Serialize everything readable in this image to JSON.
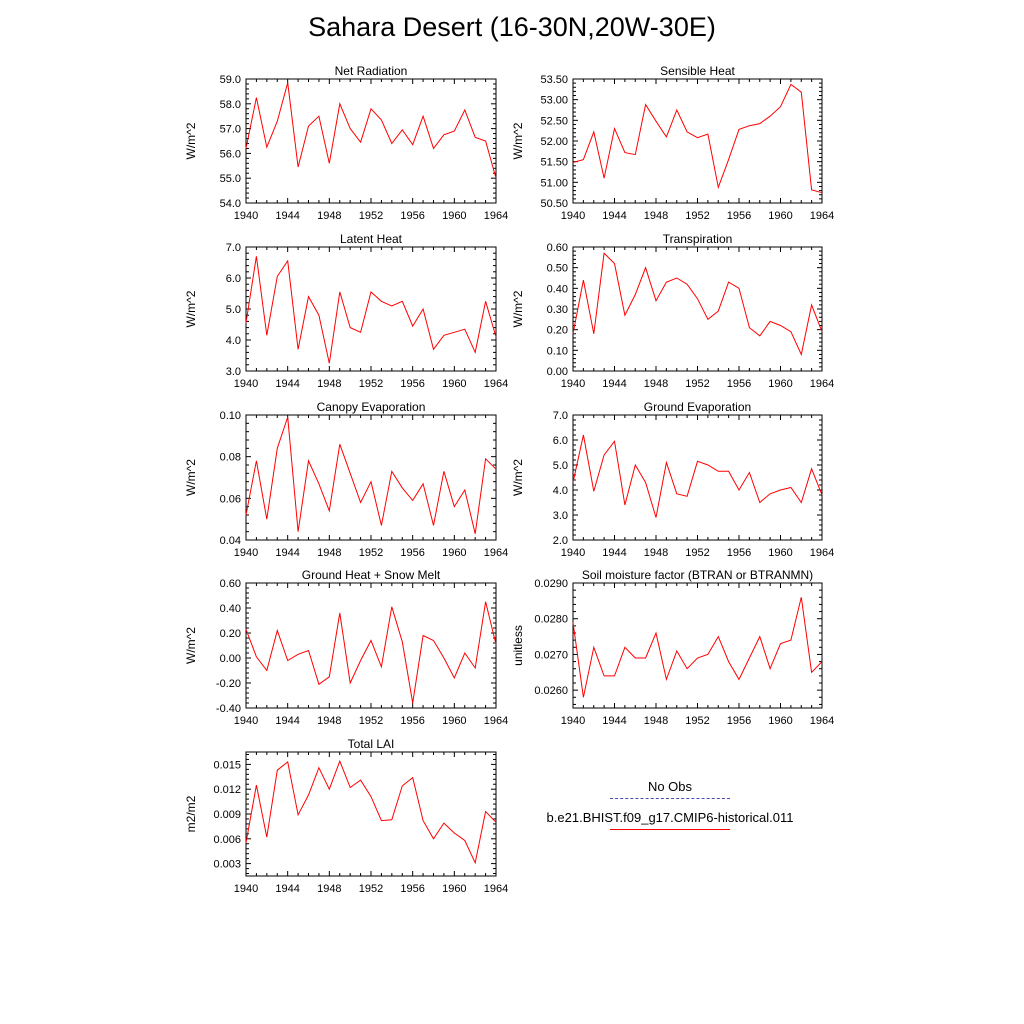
{
  "title": "Sahara Desert (16-30N,20W-30E)",
  "legend": {
    "obs_label": "No Obs",
    "obs_color": "#4b4bb0",
    "model_label": "b.e21.BHIST.f09_g17.CMIP6-historical.011",
    "model_color": "#ff0000"
  },
  "chart_data": [
    {
      "type": "line",
      "title": "Net Radiation",
      "xlabel": "",
      "ylabel": "W/m^2",
      "xlim": [
        1940,
        1964
      ],
      "ylim": [
        54.0,
        59.0
      ],
      "xticks": [
        "1940",
        "1944",
        "1948",
        "1952",
        "1956",
        "1960",
        "1964"
      ],
      "yticks": [
        "54.0",
        "55.0",
        "56.0",
        "57.0",
        "58.0",
        "59.0"
      ],
      "series": [
        {
          "color": "#ff0000",
          "x": [
            1940,
            1941,
            1942,
            1943,
            1944,
            1945,
            1946,
            1947,
            1948,
            1949,
            1950,
            1951,
            1952,
            1953,
            1954,
            1955,
            1956,
            1957,
            1958,
            1959,
            1960,
            1961,
            1962,
            1963,
            1964
          ],
          "y": [
            56.2,
            58.25,
            56.25,
            57.3,
            58.85,
            55.45,
            57.1,
            57.5,
            55.6,
            58.0,
            57.0,
            56.45,
            57.8,
            57.35,
            56.4,
            56.95,
            56.35,
            57.5,
            56.2,
            56.75,
            56.9,
            57.75,
            56.65,
            56.5,
            55.0
          ]
        }
      ]
    },
    {
      "type": "line",
      "title": "Sensible Heat",
      "xlabel": "",
      "ylabel": "W/m^2",
      "xlim": [
        1940,
        1964
      ],
      "ylim": [
        50.5,
        53.5
      ],
      "xticks": [
        "1940",
        "1944",
        "1948",
        "1952",
        "1956",
        "1960",
        "1964"
      ],
      "yticks": [
        "50.50",
        "51.00",
        "51.50",
        "52.00",
        "52.50",
        "53.00",
        "53.50"
      ],
      "series": [
        {
          "color": "#ff0000",
          "x": [
            1940,
            1941,
            1942,
            1943,
            1944,
            1945,
            1946,
            1947,
            1948,
            1949,
            1950,
            1951,
            1952,
            1953,
            1954,
            1955,
            1956,
            1957,
            1958,
            1959,
            1960,
            1961,
            1962,
            1963,
            1964
          ],
          "y": [
            51.48,
            51.55,
            52.22,
            51.1,
            52.3,
            51.72,
            51.67,
            52.88,
            52.48,
            52.1,
            52.75,
            52.22,
            52.08,
            52.17,
            50.88,
            51.55,
            52.28,
            52.37,
            52.42,
            52.6,
            52.83,
            53.37,
            53.18,
            50.82,
            50.75
          ]
        }
      ]
    },
    {
      "type": "line",
      "title": "Latent Heat",
      "xlabel": "",
      "ylabel": "W/m^2",
      "xlim": [
        1940,
        1964
      ],
      "ylim": [
        3.0,
        7.0
      ],
      "xticks": [
        "1940",
        "1944",
        "1948",
        "1952",
        "1956",
        "1960",
        "1964"
      ],
      "yticks": [
        "3.0",
        "4.0",
        "5.0",
        "6.0",
        "7.0"
      ],
      "series": [
        {
          "color": "#ff0000",
          "x": [
            1940,
            1941,
            1942,
            1943,
            1944,
            1945,
            1946,
            1947,
            1948,
            1949,
            1950,
            1951,
            1952,
            1953,
            1954,
            1955,
            1956,
            1957,
            1958,
            1959,
            1960,
            1961,
            1962,
            1963,
            1964
          ],
          "y": [
            4.55,
            6.7,
            4.15,
            6.05,
            6.55,
            3.7,
            5.4,
            4.8,
            3.25,
            5.55,
            4.4,
            4.25,
            5.55,
            5.25,
            5.1,
            5.25,
            4.45,
            5.0,
            3.7,
            4.15,
            4.25,
            4.35,
            3.6,
            5.25,
            4.1
          ]
        }
      ]
    },
    {
      "type": "line",
      "title": "Transpiration",
      "xlabel": "",
      "ylabel": "W/m^2",
      "xlim": [
        1940,
        1964
      ],
      "ylim": [
        0.0,
        0.6
      ],
      "xticks": [
        "1940",
        "1944",
        "1948",
        "1952",
        "1956",
        "1960",
        "1964"
      ],
      "yticks": [
        "0.00",
        "0.10",
        "0.20",
        "0.30",
        "0.40",
        "0.50",
        "0.60"
      ],
      "series": [
        {
          "color": "#ff0000",
          "x": [
            1940,
            1941,
            1942,
            1943,
            1944,
            1945,
            1946,
            1947,
            1948,
            1949,
            1950,
            1951,
            1952,
            1953,
            1954,
            1955,
            1956,
            1957,
            1958,
            1959,
            1960,
            1961,
            1962,
            1963,
            1964
          ],
          "y": [
            0.18,
            0.44,
            0.18,
            0.57,
            0.52,
            0.27,
            0.37,
            0.5,
            0.34,
            0.43,
            0.45,
            0.42,
            0.35,
            0.25,
            0.29,
            0.43,
            0.4,
            0.21,
            0.17,
            0.24,
            0.22,
            0.19,
            0.08,
            0.32,
            0.19
          ]
        }
      ]
    },
    {
      "type": "line",
      "title": "Canopy Evaporation",
      "xlabel": "",
      "ylabel": "W/m^2",
      "xlim": [
        1940,
        1964
      ],
      "ylim": [
        0.04,
        0.1
      ],
      "xticks": [
        "1940",
        "1944",
        "1948",
        "1952",
        "1956",
        "1960",
        "1964"
      ],
      "yticks": [
        "0.04",
        "0.06",
        "0.08",
        "0.10"
      ],
      "series": [
        {
          "color": "#ff0000",
          "x": [
            1940,
            1941,
            1942,
            1943,
            1944,
            1945,
            1946,
            1947,
            1948,
            1949,
            1950,
            1951,
            1952,
            1953,
            1954,
            1955,
            1956,
            1957,
            1958,
            1959,
            1960,
            1961,
            1962,
            1963,
            1964
          ],
          "y": [
            0.052,
            0.078,
            0.05,
            0.084,
            0.099,
            0.044,
            0.078,
            0.067,
            0.054,
            0.086,
            0.072,
            0.058,
            0.068,
            0.047,
            0.073,
            0.065,
            0.059,
            0.067,
            0.047,
            0.073,
            0.056,
            0.064,
            0.043,
            0.079,
            0.074
          ]
        }
      ]
    },
    {
      "type": "line",
      "title": "Ground Evaporation",
      "xlabel": "",
      "ylabel": "W/m^2",
      "xlim": [
        1940,
        1964
      ],
      "ylim": [
        2.0,
        7.0
      ],
      "xticks": [
        "1940",
        "1944",
        "1948",
        "1952",
        "1956",
        "1960",
        "1964"
      ],
      "yticks": [
        "2.0",
        "3.0",
        "4.0",
        "5.0",
        "6.0",
        "7.0"
      ],
      "series": [
        {
          "color": "#ff0000",
          "x": [
            1940,
            1941,
            1942,
            1943,
            1944,
            1945,
            1946,
            1947,
            1948,
            1949,
            1950,
            1951,
            1952,
            1953,
            1954,
            1955,
            1956,
            1957,
            1958,
            1959,
            1960,
            1961,
            1962,
            1963,
            1964
          ],
          "y": [
            4.3,
            6.2,
            3.95,
            5.4,
            5.95,
            3.4,
            5.0,
            4.3,
            2.9,
            5.1,
            3.85,
            3.75,
            5.15,
            5.0,
            4.75,
            4.75,
            4.0,
            4.7,
            3.5,
            3.85,
            4.0,
            4.1,
            3.5,
            4.85,
            3.8
          ]
        }
      ]
    },
    {
      "type": "line",
      "title": "Ground Heat + Snow Melt",
      "xlabel": "",
      "ylabel": "W/m^2",
      "xlim": [
        1940,
        1964
      ],
      "ylim": [
        -0.4,
        0.6
      ],
      "xticks": [
        "1940",
        "1944",
        "1948",
        "1952",
        "1956",
        "1960",
        "1964"
      ],
      "yticks": [
        "-0.40",
        "-0.20",
        "0.00",
        "0.20",
        "0.40",
        "0.60"
      ],
      "series": [
        {
          "color": "#ff0000",
          "x": [
            1940,
            1941,
            1942,
            1943,
            1944,
            1945,
            1946,
            1947,
            1948,
            1949,
            1950,
            1951,
            1952,
            1953,
            1954,
            1955,
            1956,
            1957,
            1958,
            1959,
            1960,
            1961,
            1962,
            1963,
            1964
          ],
          "y": [
            0.23,
            0.01,
            -0.1,
            0.22,
            -0.02,
            0.03,
            0.06,
            -0.21,
            -0.15,
            0.36,
            -0.2,
            -0.02,
            0.14,
            -0.07,
            0.41,
            0.13,
            -0.36,
            0.18,
            0.14,
            0.0,
            -0.16,
            0.04,
            -0.08,
            0.45,
            0.11
          ]
        }
      ]
    },
    {
      "type": "line",
      "title": "Soil moisture factor (BTRAN or BTRANMN)",
      "xlabel": "",
      "ylabel": "unitless",
      "xlim": [
        1940,
        1964
      ],
      "ylim": [
        0.0255,
        0.029
      ],
      "xticks": [
        "1940",
        "1944",
        "1948",
        "1952",
        "1956",
        "1960",
        "1964"
      ],
      "yticks": [
        "0.0260",
        "0.0270",
        "0.0280",
        "0.0290"
      ],
      "series": [
        {
          "color": "#ff0000",
          "x": [
            1940,
            1941,
            1942,
            1943,
            1944,
            1945,
            1946,
            1947,
            1948,
            1949,
            1950,
            1951,
            1952,
            1953,
            1954,
            1955,
            1956,
            1957,
            1958,
            1959,
            1960,
            1961,
            1962,
            1963,
            1964
          ],
          "y": [
            0.0279,
            0.0258,
            0.0272,
            0.0264,
            0.0264,
            0.0272,
            0.0269,
            0.0269,
            0.0276,
            0.0263,
            0.0271,
            0.0266,
            0.0269,
            0.027,
            0.0275,
            0.0268,
            0.0263,
            0.0269,
            0.0275,
            0.0266,
            0.0273,
            0.0274,
            0.0286,
            0.0265,
            0.0268
          ]
        }
      ]
    },
    {
      "type": "line",
      "title": "Total LAI",
      "xlabel": "",
      "ylabel": "m2/m2",
      "xlim": [
        1940,
        1964
      ],
      "ylim": [
        0.0015,
        0.0165
      ],
      "xticks": [
        "1940",
        "1944",
        "1948",
        "1952",
        "1956",
        "1960",
        "1964"
      ],
      "yticks": [
        "0.003",
        "0.006",
        "0.009",
        "0.012",
        "0.015"
      ],
      "series": [
        {
          "color": "#ff0000",
          "x": [
            1940,
            1941,
            1942,
            1943,
            1944,
            1945,
            1946,
            1947,
            1948,
            1949,
            1950,
            1951,
            1952,
            1953,
            1954,
            1955,
            1956,
            1957,
            1958,
            1959,
            1960,
            1961,
            1962,
            1963,
            1964
          ],
          "y": [
            0.0055,
            0.0125,
            0.0062,
            0.0143,
            0.0153,
            0.0089,
            0.0113,
            0.0146,
            0.012,
            0.0154,
            0.0122,
            0.0131,
            0.0111,
            0.0082,
            0.0083,
            0.0124,
            0.0134,
            0.0082,
            0.006,
            0.0079,
            0.0067,
            0.0058,
            0.0031,
            0.0093,
            0.008
          ]
        }
      ]
    }
  ]
}
